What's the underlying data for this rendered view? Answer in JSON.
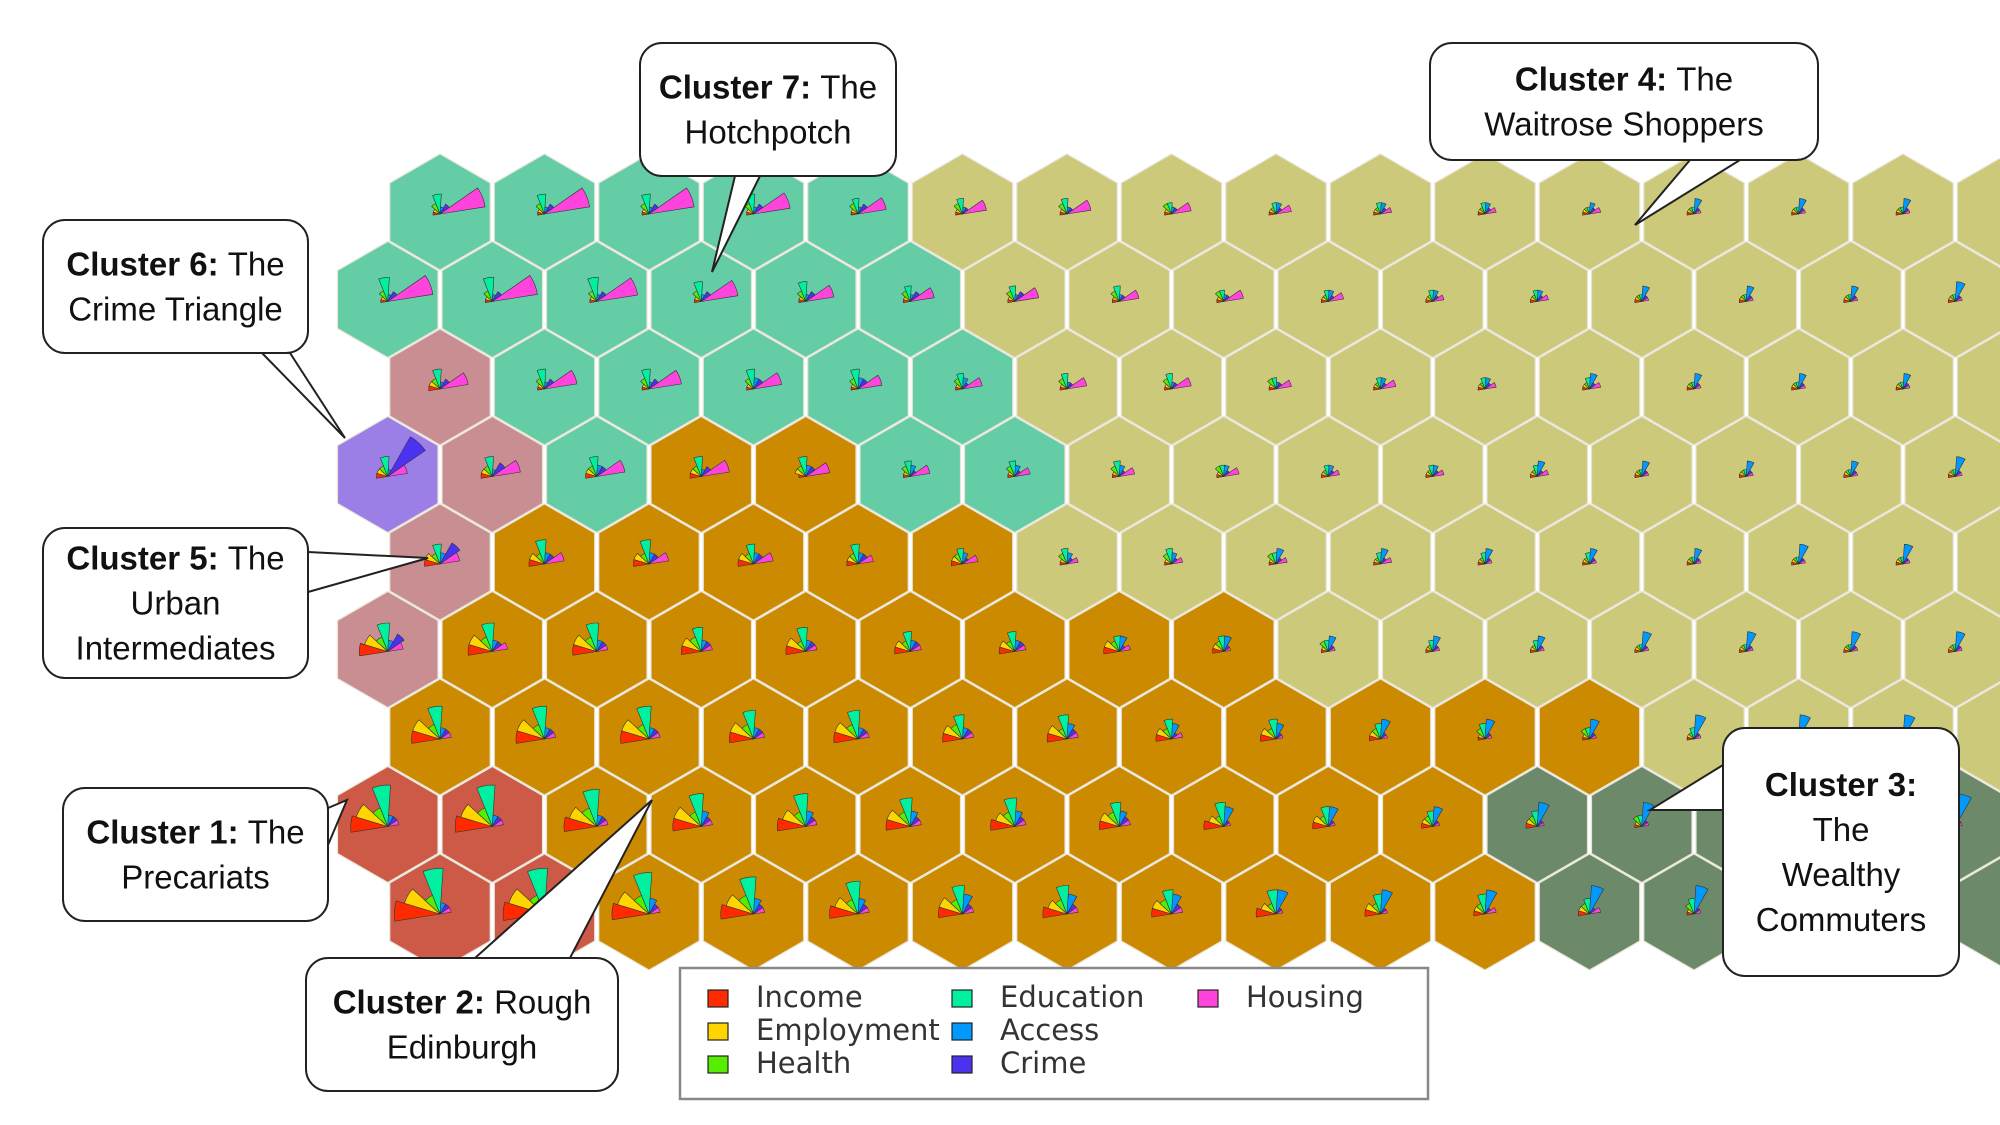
{
  "colors": {
    "cluster1": "#cd5a47",
    "cluster2": "#cc8a00",
    "cluster3": "#6c8a6a",
    "cluster4": "#cdc97b",
    "cluster5": "#c88e92",
    "cluster6": "#9c7fe6",
    "cluster7": "#64cda6",
    "hex_border": "#e8e4d8"
  },
  "domains": [
    {
      "key": "income",
      "name": "Income",
      "color": "#ff2a00"
    },
    {
      "key": "employment",
      "name": "Employment",
      "color": "#ffd500"
    },
    {
      "key": "health",
      "name": "Health",
      "color": "#55ee00"
    },
    {
      "key": "education",
      "name": "Education",
      "color": "#00f0a0"
    },
    {
      "key": "access",
      "name": "Access",
      "color": "#0099ff"
    },
    {
      "key": "crime",
      "name": "Crime",
      "color": "#4a32f0"
    },
    {
      "key": "housing",
      "name": "Housing",
      "color": "#ff44dd"
    }
  ],
  "grid": {
    "rows": [
      "777774444444444444",
      "777777444444444444",
      "577777444444444444",
      "657227744444444444",
      "522222444444444444",
      "522222222444444444",
      "222222222222444434",
      "112222222223333333",
      "112222222223333333"
    ],
    "cells": [
      [
        "0,0,1,3,0,1,9",
        "0,0,1,3,0,1,9",
        "0,0,1,3,0,1,9",
        "0,0,1,3,0,1,7",
        "0,0,1,2,0,1,5",
        "0,0,1,2,0,0,4",
        "0,0,1,2,0,0,4",
        "0,0,1,1,0,0,3",
        "0,0,0,1,1,0,2",
        "0,0,0,1,1,0,1",
        "0,0,0,1,1,0,1",
        "0,0,0,0,1,0,1",
        "0,0,0,0,2,0,0",
        "0,0,0,0,2,0,0",
        "0,0,0,0,2,0,0",
        "0,0,0,0,2,0,0",
        "0,0,0,0,3,0,0",
        "0,0,0,0,3,0,0"
      ],
      [
        "0,0,1,4,0,1,9",
        "0,0,1,4,0,1,9",
        "0,0,1,4,0,1,8",
        "0,0,1,3,0,1,7",
        "0,0,1,3,0,1,5",
        "0,0,1,2,0,1,4",
        "0,0,1,2,0,1,4",
        "0,0,1,2,0,0,3",
        "0,0,1,1,0,0,3",
        "0,0,0,1,1,0,2",
        "0,0,0,1,1,0,1",
        "0,0,0,1,1,0,1",
        "0,0,0,0,2,0,0",
        "0,0,0,0,2,0,0",
        "0,0,0,0,2,0,0",
        "0,0,0,0,3,0,0",
        "0,0,0,0,3,0,0",
        "0,0,0,0,3,0,0"
      ],
      [
        "1,1,1,3,0,1,5",
        "0,0,1,3,0,1,6",
        "0,0,1,3,0,1,6",
        "0,0,1,3,1,1,5",
        "0,0,1,3,1,1,4",
        "0,0,1,2,1,0,3",
        "0,0,1,2,0,0,3",
        "0,0,1,2,0,0,3",
        "0,0,1,1,0,0,2",
        "0,0,0,1,1,0,2",
        "0,0,0,1,1,0,1",
        "0,0,0,1,2,0,1",
        "0,0,0,0,2,0,0",
        "0,0,0,0,2,0,0",
        "0,0,0,0,2,0,0",
        "0,0,0,0,3,0,0",
        "0,0,0,0,3,0,0",
        "0,0,0,0,3,0,0"
      ],
      [
        "1,1,1,3,0,9,3",
        "1,1,1,3,0,2,5",
        "1,1,1,3,1,1,5",
        "1,1,1,3,0,1,5",
        "0,1,1,3,1,1,4",
        "0,0,1,2,1,0,3",
        "0,0,1,2,1,0,2",
        "0,0,1,2,1,0,2",
        "0,0,1,1,1,0,2",
        "0,0,0,1,1,0,1",
        "0,0,0,1,1,0,1",
        "0,0,0,1,2,0,1",
        "0,0,0,0,2,0,0",
        "0,0,0,0,2,0,0",
        "0,0,0,0,2,0,0",
        "0,0,0,0,3,0,0",
        "0,0,0,0,3,0,0",
        "0,0,0,0,3,0,0"
      ],
      [
        "2,2,1,3,1,4,3",
        "2,2,1,4,1,1,3",
        "2,2,1,4,1,1,3",
        "2,2,1,3,1,1,3",
        "1,1,1,3,1,1,2",
        "1,1,1,2,1,0,2",
        "0,0,1,2,1,0,1",
        "0,0,1,2,1,0,1",
        "0,0,1,1,2,0,1",
        "0,0,0,1,2,0,1",
        "0,0,0,1,2,0,0",
        "0,0,0,1,2,0,0",
        "0,0,0,0,2,0,0",
        "0,0,0,0,3,0,0",
        "0,0,0,0,3,0,0",
        "0,0,0,0,3,0,0",
        "0,0,0,0,3,0,0",
        "0,0,0,0,3,0,0"
      ],
      [
        "5,4,2,5,1,3,2",
        "4,4,2,5,1,1,2",
        "4,4,2,5,1,1,1",
        "3,3,2,4,1,1,1",
        "3,3,1,4,1,1,1",
        "2,2,1,3,1,1,1",
        "2,2,1,3,1,1,1",
        "2,2,1,2,2,0,1",
        "1,1,1,2,2,0,0",
        "0,0,1,1,2,0,0",
        "0,0,0,1,2,0,0",
        "0,0,0,1,2,0,0",
        "0,0,0,0,3,0,0",
        "0,0,0,0,3,0,0",
        "0,0,0,0,3,0,0",
        "0,0,0,0,3,0,0",
        "0,0,0,0,4,0,0",
        "0,0,0,0,4,0,0"
      ],
      [
        "5,5,2,6,1,1,1",
        "5,5,2,6,1,1,1",
        "5,5,2,6,1,1,1",
        "4,4,2,5,1,1,1",
        "4,4,2,5,1,1,1",
        "3,3,2,4,1,1,1",
        "3,3,1,4,2,1,1",
        "2,2,1,3,2,0,1",
        "2,2,1,3,2,0,0",
        "1,1,1,2,3,0,0",
        "0,0,1,2,3,0,0",
        "0,0,1,1,3,0,0",
        "0,0,0,1,4,0,0",
        "0,0,0,1,4,0,0",
        "0,0,0,0,4,0,0",
        "0,0,0,0,4,0,0",
        "0,0,0,0,5,0,0",
        "0,0,0,0,5,0,0"
      ],
      [
        "7,6,3,8,1,1,1",
        "7,6,3,8,1,1,1",
        "6,5,3,7,1,1,1",
        "5,5,2,6,2,1,1",
        "5,4,2,6,2,1,1",
        "4,4,2,5,2,1,1",
        "4,3,2,5,2,1,1",
        "3,3,2,4,2,1,1",
        "3,2,1,4,3,0,0",
        "2,2,1,3,3,0,0",
        "1,1,1,2,3,0,0",
        "1,1,1,2,4,0,0",
        "0,0,1,1,4,0,0",
        "0,0,0,1,5,0,0",
        "0,0,0,1,5,0,0",
        "0,0,0,0,6,0,0",
        "0,0,0,0,6,0,0",
        "0,0,0,0,6,0,0"
      ],
      [
        "9,7,3,9,1,1,1",
        "8,7,3,9,1,1,1",
        "7,6,3,8,2,1,1",
        "6,5,3,7,2,1,1",
        "5,4,2,6,2,1,1",
        "4,4,2,5,3,1,1",
        "4,3,2,5,3,1,1",
        "3,3,2,4,3,1,1",
        "3,2,1,4,4,0,0",
        "2,2,1,3,4,0,0",
        "1,1,1,3,4,0,1",
        "1,1,1,2,5,0,1",
        "0,0,1,2,5,0,0",
        "0,0,1,1,6,0,0",
        "0,0,0,1,6,0,0",
        "0,0,0,1,7,0,0",
        "0,0,0,0,8,0,0",
        "0,0,0,0,9,0,0"
      ]
    ]
  },
  "callouts": [
    {
      "id": "cluster-7",
      "bold": "Cluster 7:",
      "lines": [
        "The",
        "Hotchpotch"
      ]
    },
    {
      "id": "cluster-4",
      "bold": "Cluster 4:",
      "lines": [
        "The",
        "Waitrose Shoppers"
      ]
    },
    {
      "id": "cluster-6",
      "bold": "Cluster 6:",
      "lines": [
        "The",
        "Crime Triangle"
      ]
    },
    {
      "id": "cluster-5",
      "bold": "Cluster 5:",
      "lines": [
        "The",
        "Urban",
        "Intermediates"
      ]
    },
    {
      "id": "cluster-1",
      "bold": "Cluster 1:",
      "lines": [
        "The",
        "Precariats"
      ]
    },
    {
      "id": "cluster-2",
      "bold": "Cluster 2:",
      "lines": [
        "Rough",
        "Edinburgh"
      ]
    },
    {
      "id": "cluster-3",
      "bold": "Cluster 3:",
      "lines": [
        "",
        "The",
        "Wealthy",
        "Commuters"
      ]
    }
  ]
}
